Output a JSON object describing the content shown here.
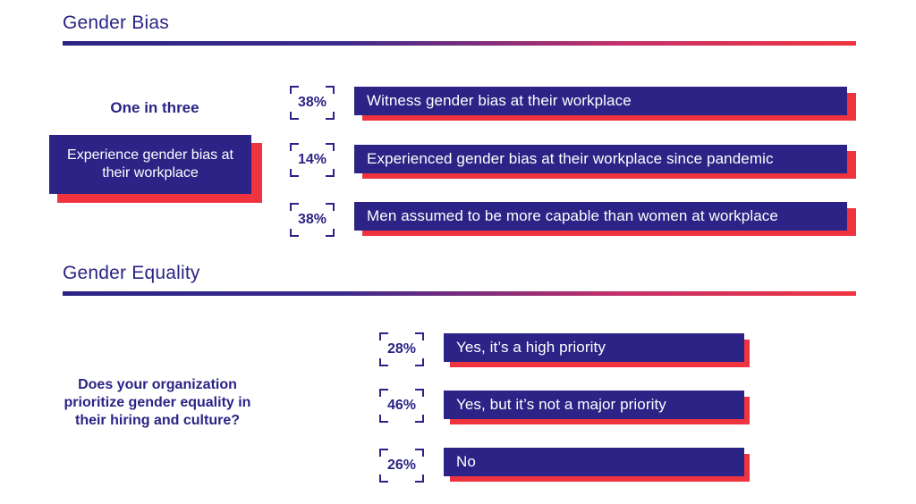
{
  "chart_data": [
    {
      "type": "bar",
      "title": "Gender Bias",
      "summary_heading": "One in three",
      "summary_text": "Experience gender bias at their workplace",
      "categories": [
        "Witness gender bias at their workplace",
        "Experienced gender bias at their workplace since pandemic",
        "Men assumed to be more capable than women at workplace"
      ],
      "values": [
        38,
        14,
        38
      ],
      "labels": [
        "38%",
        "14%",
        "38%"
      ]
    },
    {
      "type": "bar",
      "title": "Gender Equality",
      "question": "Does your organization prioritize gender equality in their hiring and culture?",
      "categories": [
        "Yes, it’s a high priority",
        "Yes, but it’s not a major priority",
        "No"
      ],
      "values": [
        28,
        46,
        26
      ],
      "labels": [
        "28%",
        "46%",
        "26%"
      ]
    }
  ],
  "colors": {
    "navy": "#2b2385",
    "red": "#f0343f"
  }
}
